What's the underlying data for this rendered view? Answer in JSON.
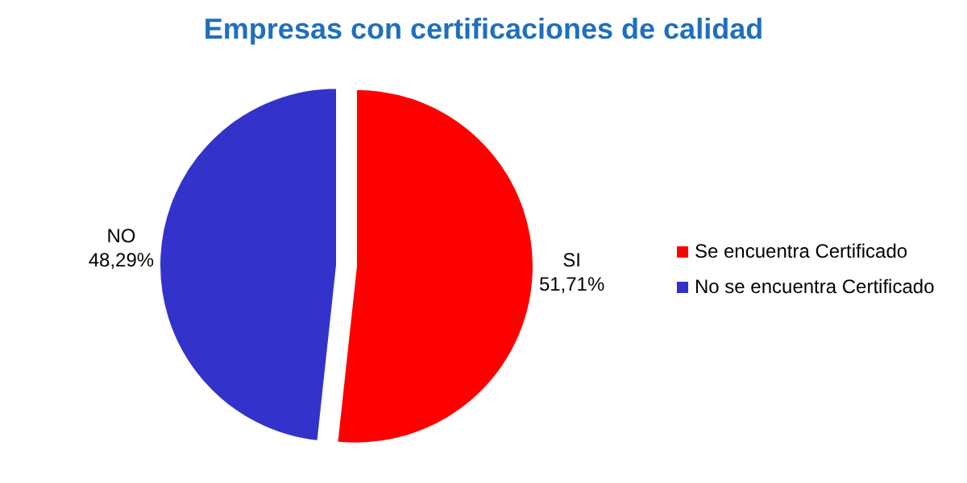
{
  "chart_data": {
    "type": "pie",
    "title": "Empresas con certificaciones de calidad",
    "categories": [
      "Se encuentra Certificado",
      "No se encuentra Certificado"
    ],
    "values": [
      51.71,
      48.29
    ],
    "colors": [
      "#ff0000",
      "#3333cc"
    ],
    "value_labels": [
      "SI\n51,71%",
      "NO\n48,29%"
    ],
    "legend": "right"
  }
}
